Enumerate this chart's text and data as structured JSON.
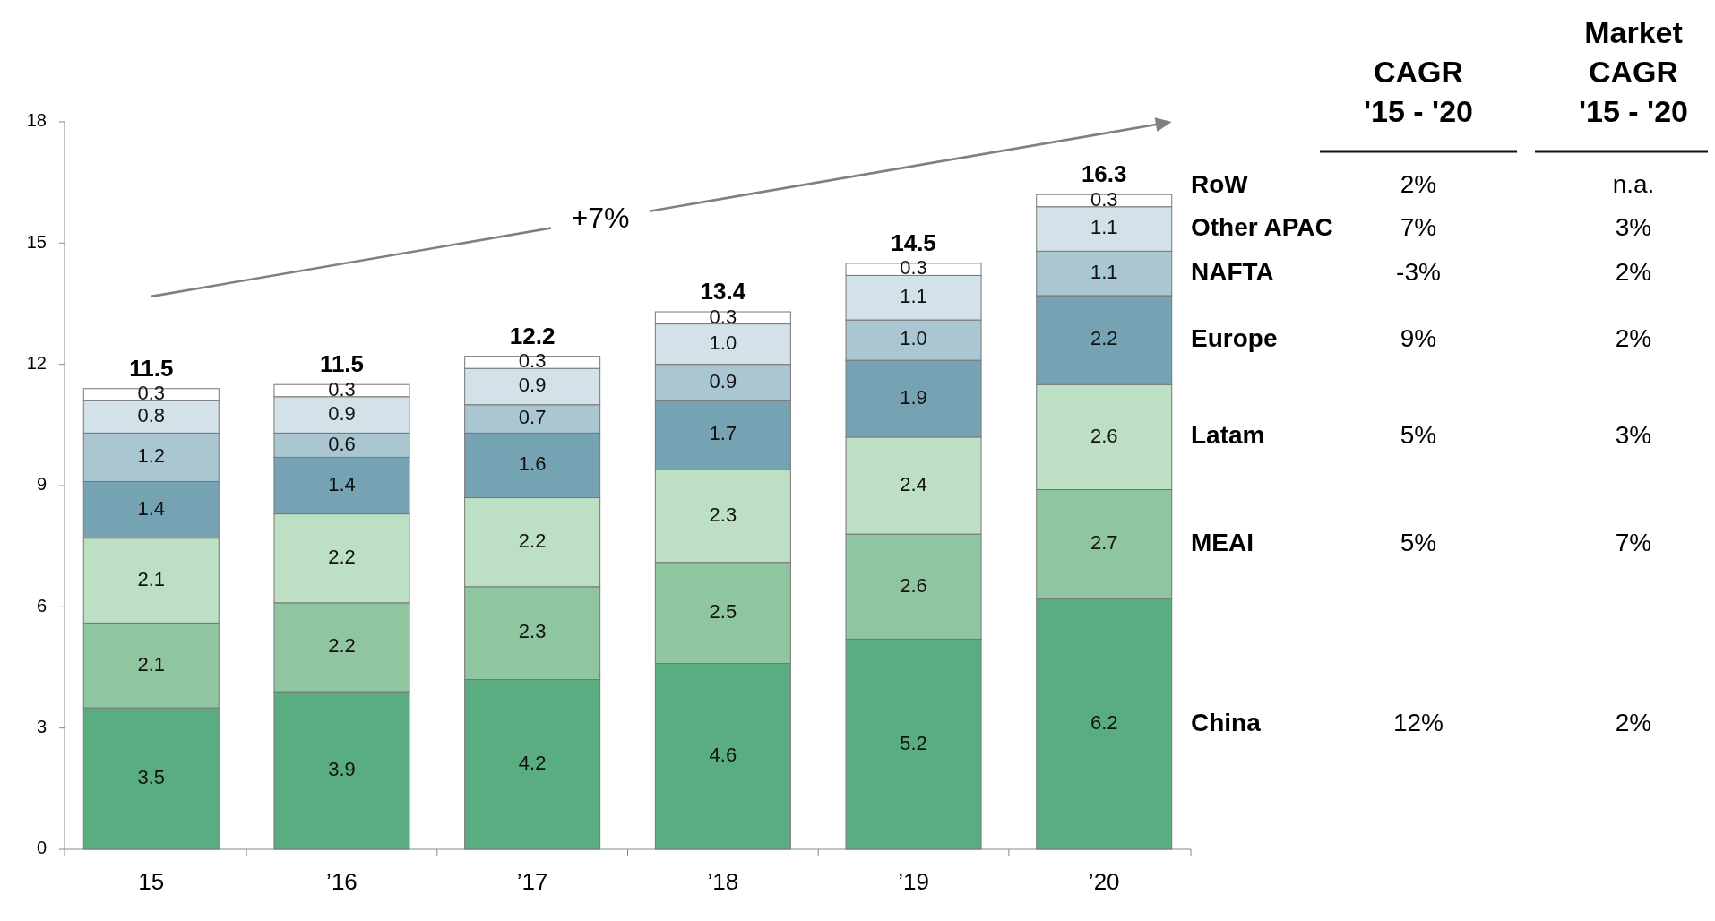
{
  "chart_data": {
    "type": "bar",
    "stacked": true,
    "legend": "right",
    "grid": false,
    "categories": [
      "15",
      "’16",
      "’17",
      "’18",
      "’19",
      "’20"
    ],
    "series": [
      {
        "name": "China",
        "color": "#5aad80",
        "values": [
          3.5,
          3.9,
          4.2,
          4.6,
          5.2,
          6.2
        ],
        "value_labels": [
          "3.5",
          "3.9",
          "4.2",
          "4.6",
          "5.2",
          "6.2"
        ]
      },
      {
        "name": "MEAI",
        "color": "#8fc69f",
        "values": [
          2.1,
          2.2,
          2.3,
          2.5,
          2.6,
          2.7
        ],
        "value_labels": [
          "2.1",
          "2.2",
          "2.3",
          "2.5",
          "2.6",
          "2.7"
        ]
      },
      {
        "name": "Latam",
        "color": "#bde0c4",
        "values": [
          2.1,
          2.2,
          2.2,
          2.3,
          2.4,
          2.6
        ],
        "value_labels": [
          "2.1",
          "2.2",
          "2.2",
          "2.3",
          "2.4",
          "2.6"
        ]
      },
      {
        "name": "Europe",
        "color": "#76a3b4",
        "values": [
          1.4,
          1.4,
          1.6,
          1.7,
          1.9,
          2.2
        ],
        "value_labels": [
          "1.4",
          "1.4",
          "1.6",
          "1.7",
          "1.9",
          "2.2"
        ]
      },
      {
        "name": "NAFTA",
        "color": "#a9c6d1",
        "values": [
          1.2,
          0.6,
          0.7,
          0.9,
          1.0,
          1.1
        ],
        "value_labels": [
          "1.2",
          "0.6",
          "0.7",
          "0.9",
          "1.0",
          "1.1"
        ]
      },
      {
        "name": "Other APAC",
        "color": "#d3e1e8",
        "values": [
          0.8,
          0.9,
          0.9,
          1.0,
          1.1,
          1.1
        ],
        "value_labels": [
          "0.8",
          "0.9",
          "0.9",
          "1.0",
          "1.1",
          "1.1"
        ]
      },
      {
        "name": "RoW",
        "color": "#ffffff",
        "values": [
          0.3,
          0.3,
          0.3,
          0.3,
          0.3,
          0.3
        ],
        "value_labels": [
          "0.3",
          "0.3",
          "0.3",
          "0.3",
          "0.3",
          "0.3"
        ]
      }
    ],
    "totals": [
      "11.5",
      "11.5",
      "12.2",
      "13.4",
      "14.5",
      "16.3"
    ],
    "ylim": [
      0,
      18
    ],
    "yticks": [
      0,
      3,
      6,
      9,
      12,
      15,
      18
    ],
    "annotations": [
      "+7%",
      "CAGR\n'15 - '20",
      "Market\nCAGR\n'15 - '20",
      "12%",
      "2%",
      "5%",
      "7%",
      "5%",
      "3%",
      "9%",
      "2%",
      "-3%",
      "2%",
      "7%",
      "3%",
      "2%",
      "n.a."
    ]
  }
}
